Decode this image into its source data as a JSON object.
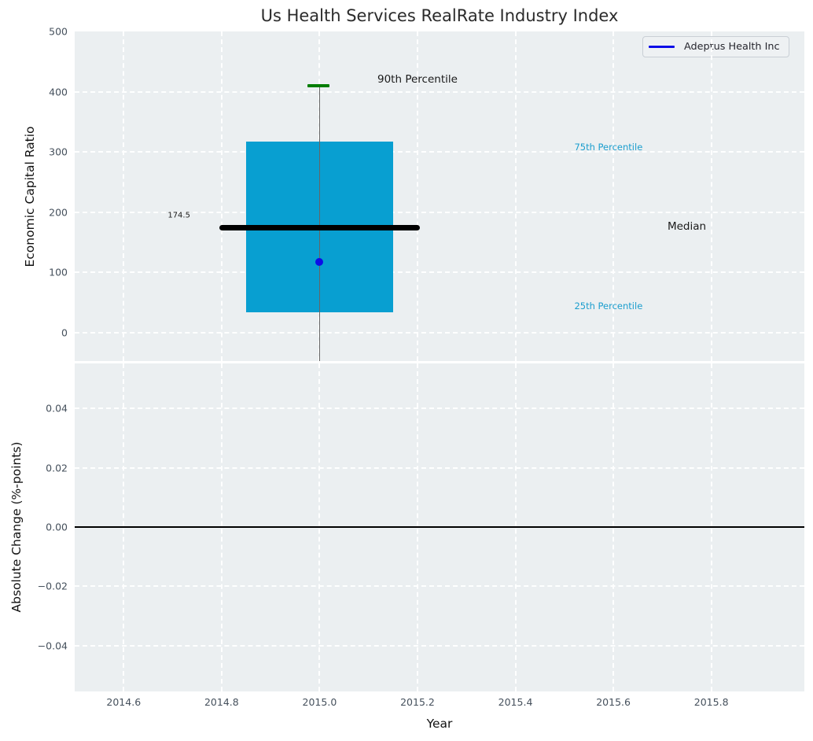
{
  "chart_data": [
    {
      "type": "box",
      "title": "Us Health Services RealRate Industry Index",
      "ylabel": "Economic Capital Ratio",
      "xlim": [
        2014.5,
        2015.99
      ],
      "ylim": [
        -47,
        500
      ],
      "grid": true,
      "yticks": [
        {
          "v": 0,
          "label": "0"
        },
        {
          "v": 100,
          "label": "100"
        },
        {
          "v": 200,
          "label": "200"
        },
        {
          "v": 300,
          "label": "300"
        },
        {
          "v": 400,
          "label": "400"
        },
        {
          "v": 500,
          "label": "500"
        }
      ],
      "box": {
        "x_center": 2015.0,
        "q1": 34,
        "median": 174.5,
        "q3": 317,
        "p90": 410,
        "whisker_low_clipped": true,
        "box_x": [
          2014.85,
          2015.15
        ],
        "median_x": [
          2014.795,
          2015.205
        ],
        "cap_x": [
          2014.975,
          2015.02
        ],
        "box_color": "#089fd1",
        "median_color": "#000000",
        "cap_color": "#007d00",
        "whisker_color": "#666666"
      },
      "point": {
        "label": "Adeptus Health Inc",
        "x": 2015.0,
        "y": 118,
        "color": "#0d0de8"
      },
      "annotations": [
        {
          "text": "90th Percentile",
          "x": 2015.2,
          "y": 420,
          "color": "#1a1a1a",
          "size": 13.5
        },
        {
          "text": "174.5",
          "x": 2014.713,
          "y": 194,
          "color": "#1a1a1a",
          "size": 10
        },
        {
          "text": "75th Percentile",
          "x": 2015.59,
          "y": 308,
          "color": "#1b9ece",
          "size": 11.5
        },
        {
          "text": "Median",
          "x": 2015.75,
          "y": 176,
          "color": "#1a1a1a",
          "size": 13.5
        },
        {
          "text": "25th Percentile",
          "x": 2015.59,
          "y": 44,
          "color": "#1b9ece",
          "size": 11.5
        }
      ],
      "legend": {
        "label": "Adeptus Health Inc",
        "line_color": "#0d0de8",
        "position": "upper right"
      }
    },
    {
      "type": "line",
      "ylabel": "Absolute Change (%-points)",
      "xlabel": "Year",
      "xlim": [
        2014.5,
        2015.99
      ],
      "ylim": [
        -0.0555,
        0.0552
      ],
      "grid": true,
      "zero_line": 0,
      "series": [],
      "yticks": [
        {
          "v": 0.04,
          "label": "0.04"
        },
        {
          "v": 0.02,
          "label": "0.02"
        },
        {
          "v": 0.0,
          "label": "0.00"
        },
        {
          "v": -0.02,
          "label": "−0.02"
        },
        {
          "v": -0.04,
          "label": "−0.04"
        }
      ],
      "xticks": [
        {
          "v": 2014.6,
          "label": "2014.6"
        },
        {
          "v": 2014.8,
          "label": "2014.8"
        },
        {
          "v": 2015.0,
          "label": "2015.0"
        },
        {
          "v": 2015.2,
          "label": "2015.2"
        },
        {
          "v": 2015.4,
          "label": "2015.4"
        },
        {
          "v": 2015.6,
          "label": "2015.6"
        },
        {
          "v": 2015.8,
          "label": "2015.8"
        }
      ]
    }
  ]
}
